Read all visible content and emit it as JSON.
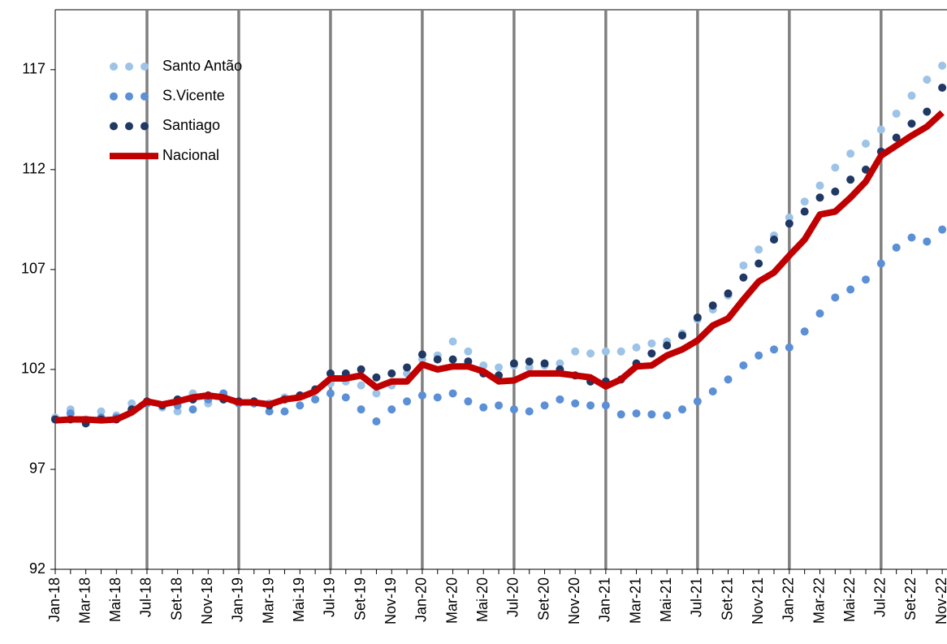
{
  "chart_data": {
    "type": "line",
    "categories": [
      "Jan-18",
      null,
      "Mar-18",
      null,
      "Mai-18",
      null,
      "Jul-18",
      null,
      "Set-18",
      null,
      "Nov-18",
      null,
      "Jan-19",
      null,
      "Mar-19",
      null,
      "Mai-19",
      null,
      "Jul-19",
      null,
      "Set-19",
      null,
      "Nov-19",
      null,
      "Jan-20",
      null,
      "Mar-20",
      null,
      "Mai-20",
      null,
      "Jul-20",
      null,
      "Set-20",
      null,
      "Nov-20",
      null,
      "Jan-21",
      null,
      "Mar-21",
      null,
      "Mai-21",
      null,
      "Jul-21",
      null,
      "Set-21",
      null,
      "Nov-21",
      null,
      "Jan-22",
      null,
      "Mar-22",
      null,
      "Mai-22",
      null,
      "Jul-22",
      null,
      "Set-22",
      null,
      "Nov-22"
    ],
    "ylim": [
      92,
      120
    ],
    "yticks": [
      92,
      97,
      102,
      107,
      112,
      117
    ],
    "series": [
      {
        "name": "Santo Antão",
        "color": "#9dc3e6",
        "marker": "dots",
        "values": [
          99.6,
          100.0,
          99.5,
          99.9,
          99.7,
          100.3,
          100.3,
          100.1,
          99.9,
          100.8,
          100.3,
          100.8,
          100.4,
          100.4,
          100.3,
          100.6,
          100.7,
          101.0,
          101.3,
          101.4,
          101.2,
          100.8,
          101.2,
          101.8,
          102.5,
          102.7,
          103.4,
          102.9,
          102.2,
          102.1,
          102.2,
          102.1,
          102.2,
          102.3,
          102.9,
          102.8,
          102.9,
          102.9,
          103.1,
          103.3,
          103.4,
          103.8,
          104.5,
          105.0,
          105.7,
          107.2,
          108.0,
          108.7,
          109.6,
          110.4,
          111.2,
          112.1,
          112.8,
          113.3,
          114.0,
          114.8,
          115.7,
          116.5,
          117.2
        ]
      },
      {
        "name": "S.Vicente",
        "color": "#5b8fd6",
        "marker": "dots",
        "values": [
          99.5,
          99.8,
          99.4,
          99.6,
          99.6,
          100.0,
          100.3,
          100.2,
          100.2,
          100.0,
          100.5,
          100.8,
          100.3,
          100.3,
          99.9,
          99.9,
          100.2,
          100.5,
          100.8,
          100.6,
          100.0,
          99.4,
          100.0,
          100.4,
          100.7,
          100.6,
          100.8,
          100.4,
          100.1,
          100.2,
          100.0,
          99.9,
          100.2,
          100.5,
          100.3,
          100.2,
          100.2,
          99.75,
          99.8,
          99.75,
          99.7,
          100.0,
          100.4,
          100.9,
          101.5,
          102.2,
          102.7,
          103.0,
          103.1,
          103.9,
          104.8,
          105.6,
          106.0,
          106.5,
          107.3,
          108.1,
          108.6,
          108.4,
          109.0
        ]
      },
      {
        "name": "Santiago",
        "color": "#1f3864",
        "marker": "dots",
        "values": [
          99.5,
          99.5,
          99.3,
          99.5,
          99.5,
          100.0,
          100.4,
          100.2,
          100.5,
          100.5,
          100.7,
          100.5,
          100.4,
          100.4,
          100.2,
          100.5,
          100.7,
          101.0,
          101.8,
          101.8,
          102.0,
          101.6,
          101.8,
          102.1,
          102.75,
          102.5,
          102.5,
          102.4,
          101.8,
          101.7,
          102.3,
          102.4,
          102.3,
          102.0,
          101.7,
          101.4,
          101.4,
          101.5,
          102.3,
          102.8,
          103.2,
          103.7,
          104.6,
          105.2,
          105.8,
          106.6,
          107.3,
          108.5,
          109.3,
          109.9,
          110.6,
          110.9,
          111.5,
          112.0,
          112.9,
          113.6,
          114.3,
          114.9,
          116.1
        ]
      },
      {
        "name": "Nacional",
        "color": "#c00000",
        "marker": "line",
        "values": [
          99.45,
          99.5,
          99.5,
          99.45,
          99.5,
          99.85,
          100.4,
          100.25,
          100.4,
          100.6,
          100.7,
          100.6,
          100.35,
          100.35,
          100.25,
          100.5,
          100.6,
          100.9,
          101.55,
          101.55,
          101.7,
          101.1,
          101.4,
          101.4,
          102.25,
          102.0,
          102.15,
          102.15,
          101.9,
          101.4,
          101.45,
          101.8,
          101.8,
          101.8,
          101.7,
          101.6,
          101.15,
          101.5,
          102.15,
          102.2,
          102.7,
          103.0,
          103.45,
          104.2,
          104.55,
          105.5,
          106.4,
          106.85,
          107.7,
          108.5,
          109.75,
          109.9,
          110.6,
          111.4,
          112.7,
          113.2,
          113.7,
          114.15,
          114.85
        ]
      }
    ]
  }
}
